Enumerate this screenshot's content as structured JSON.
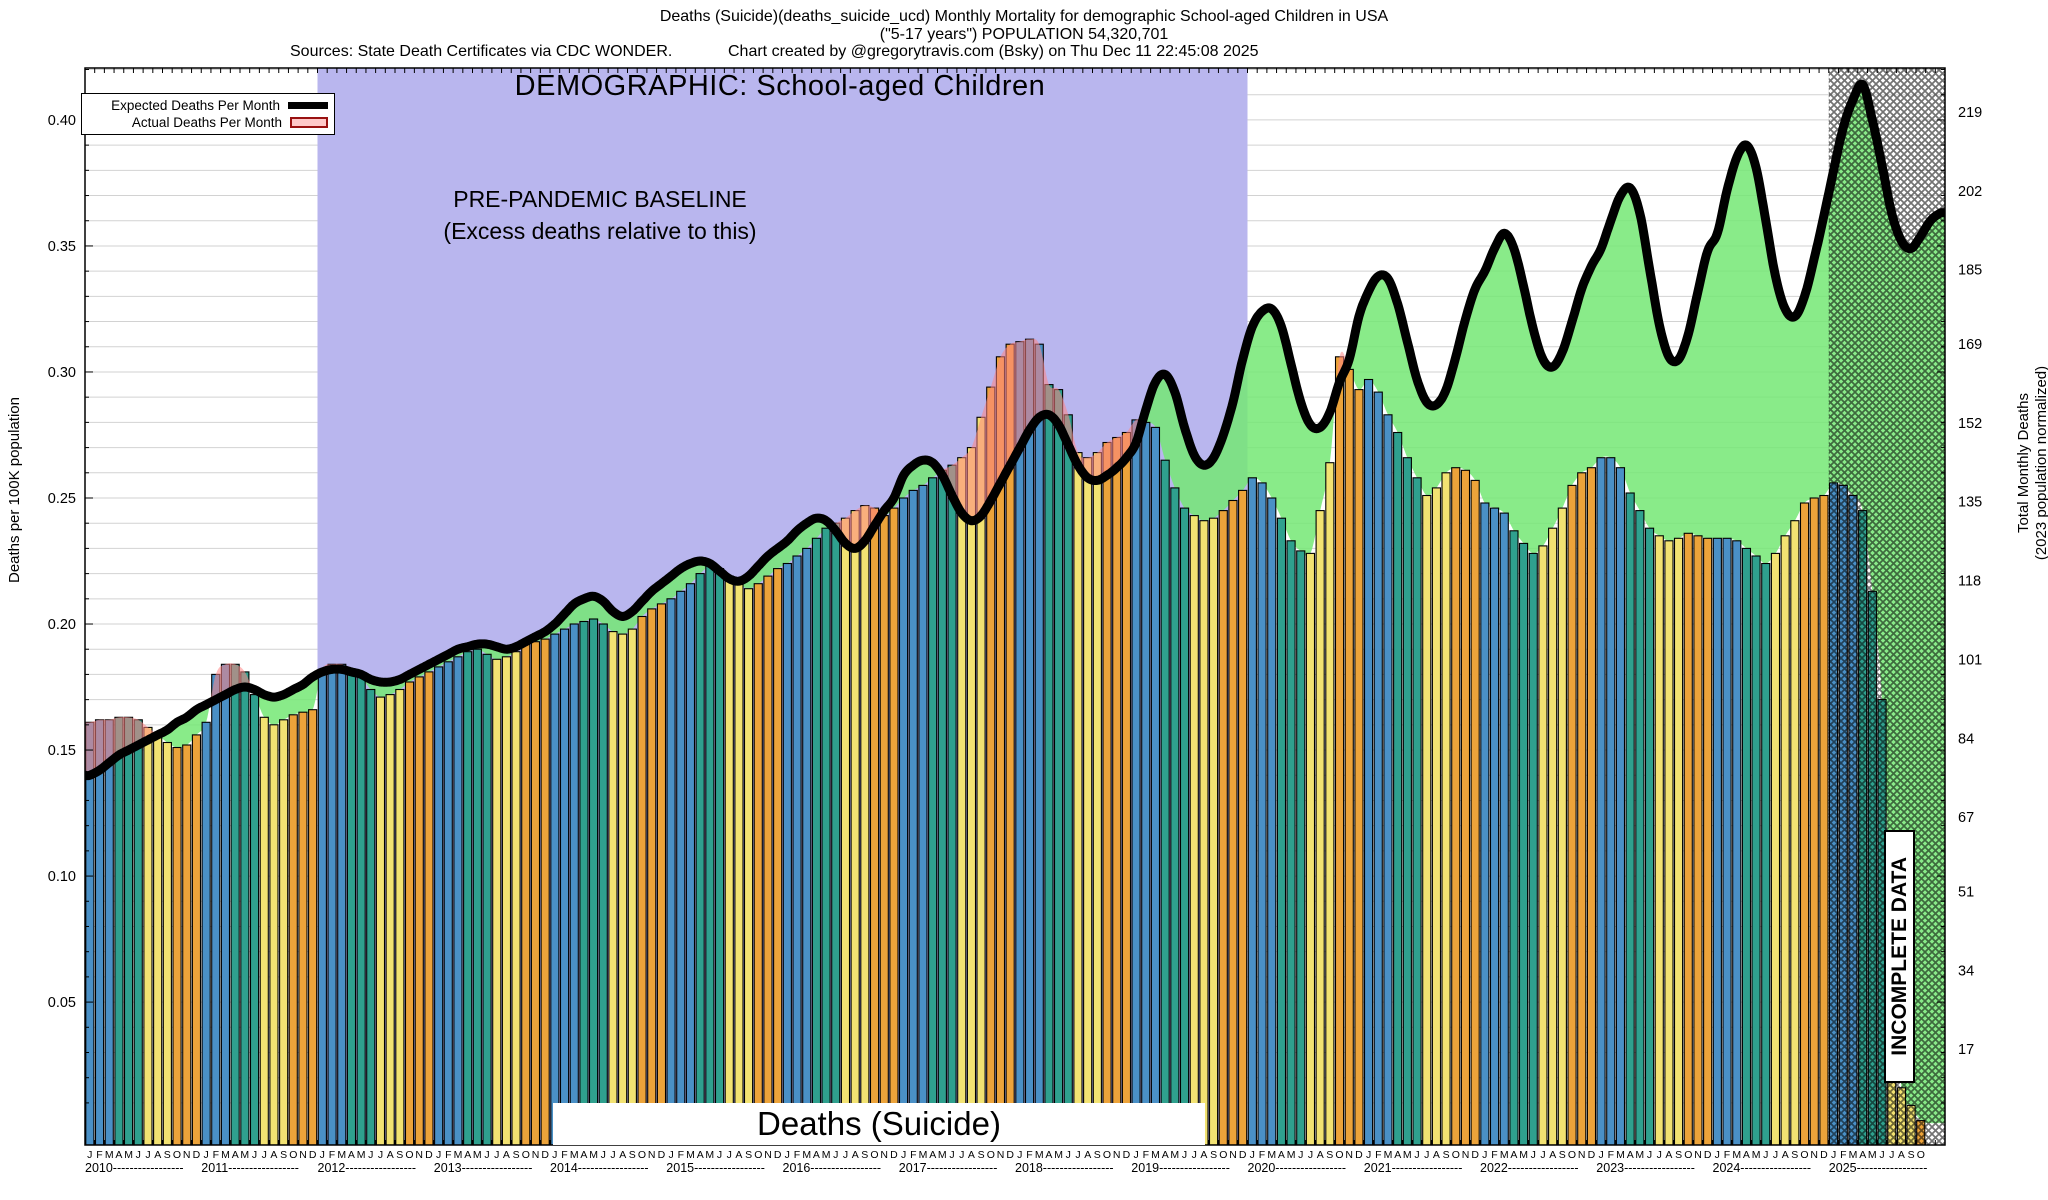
{
  "header": {
    "title_line1": "Deaths (Suicide)(deaths_suicide_ucd) Monthly Mortality for demographic School-aged Children in USA",
    "title_line2": "(\"5-17 years\") POPULATION 54,320,701",
    "sources": "Sources: State Death Certificates via CDC WONDER.",
    "credit": "Chart created by @gregorytravis.com (Bsky) on Thu Dec 11 22:45:08 2025"
  },
  "legend": {
    "expected_label": "Expected Deaths Per Month",
    "actual_label": "Actual Deaths Per Month"
  },
  "annotations": {
    "demographic": "DEMOGRAPHIC: School-aged Children",
    "baseline_line1": "PRE-PANDEMIC BASELINE",
    "baseline_line2": "(Excess deaths relative to this)",
    "bottom_label": "Deaths (Suicide)",
    "incomplete": "INCOMPLETE DATA"
  },
  "axes": {
    "left_title": "Deaths per 100K population",
    "right_title_line1": "Total Monthly Deaths",
    "right_title_line2": "(2023 population normalized)",
    "left_ticks": [
      0.05,
      0.1,
      0.15,
      0.2,
      0.25,
      0.3,
      0.35,
      0.4
    ],
    "right_ticks": [
      17,
      34,
      51,
      67,
      84,
      101,
      118,
      135,
      152,
      169,
      185,
      202,
      219
    ],
    "month_letters": "JFMAMJJASOND",
    "years": [
      2010,
      2011,
      2012,
      2013,
      2014,
      2015,
      2016,
      2017,
      2018,
      2019,
      2020,
      2021,
      2022,
      2023,
      2024,
      2025
    ]
  },
  "chart_data": {
    "type": "bar",
    "title": "Deaths (Suicide)",
    "ylabel_left": "Deaths per 100K population",
    "ylabel_right": "Total Monthly Deaths (2023 population normalized)",
    "x_start": "2010-01",
    "x_end_actual": "2025-10",
    "x_end_axis": "2025-12",
    "ylim": [
      0,
      0.42
    ],
    "population": 54320701,
    "population_100k": 543.20701,
    "grid_step": 0.01,
    "baseline_region": {
      "from_month_index": 24,
      "to_month_index": 120,
      "label": "PRE-PANDEMIC BASELINE",
      "color": "#b9b6ee"
    },
    "incomplete_region": {
      "from_month_index": 180,
      "label": "INCOMPLETE DATA"
    },
    "season_colors": {
      "jan_mar": "#4a90c6",
      "apr_jun": "#2fa08e",
      "jul_sep": "#f2e272",
      "oct_dec": "#eca33a"
    },
    "expected_line_color": "#000000",
    "deficit_fill_color": "#74e874",
    "excess_fill_color": "#ff8585",
    "series": [
      {
        "name": "Actual Deaths Per Month",
        "per_100k": [
          0.161,
          0.162,
          0.162,
          0.163,
          0.163,
          0.162,
          0.159,
          0.156,
          0.153,
          0.151,
          0.152,
          0.156,
          0.161,
          0.18,
          0.184,
          0.184,
          0.181,
          0.172,
          0.163,
          0.16,
          0.162,
          0.164,
          0.165,
          0.166,
          0.182,
          0.184,
          0.184,
          0.182,
          0.179,
          0.174,
          0.171,
          0.172,
          0.174,
          0.177,
          0.179,
          0.181,
          0.183,
          0.185,
          0.187,
          0.189,
          0.19,
          0.188,
          0.186,
          0.187,
          0.189,
          0.192,
          0.193,
          0.194,
          0.196,
          0.198,
          0.2,
          0.201,
          0.202,
          0.2,
          0.197,
          0.196,
          0.198,
          0.203,
          0.206,
          0.208,
          0.21,
          0.213,
          0.216,
          0.22,
          0.223,
          0.222,
          0.219,
          0.216,
          0.214,
          0.216,
          0.219,
          0.222,
          0.224,
          0.227,
          0.23,
          0.234,
          0.238,
          0.24,
          0.242,
          0.245,
          0.247,
          0.246,
          0.243,
          0.246,
          0.25,
          0.253,
          0.255,
          0.258,
          0.261,
          0.263,
          0.266,
          0.27,
          0.282,
          0.294,
          0.306,
          0.311,
          0.312,
          0.313,
          0.311,
          0.295,
          0.293,
          0.283,
          0.268,
          0.266,
          0.268,
          0.272,
          0.274,
          0.276,
          0.281,
          0.28,
          0.278,
          0.265,
          0.254,
          0.246,
          0.243,
          0.241,
          0.242,
          0.245,
          0.249,
          0.253,
          0.258,
          0.256,
          0.25,
          0.242,
          0.233,
          0.229,
          0.228,
          0.245,
          0.264,
          0.306,
          0.301,
          0.293,
          0.297,
          0.292,
          0.283,
          0.276,
          0.266,
          0.258,
          0.251,
          0.254,
          0.26,
          0.262,
          0.261,
          0.257,
          0.248,
          0.246,
          0.244,
          0.237,
          0.232,
          0.228,
          0.231,
          0.238,
          0.246,
          0.255,
          0.26,
          0.262,
          0.266,
          0.266,
          0.262,
          0.252,
          0.245,
          0.238,
          0.235,
          0.233,
          0.234,
          0.236,
          0.235,
          0.234,
          0.234,
          0.234,
          0.233,
          0.23,
          0.227,
          0.224,
          0.228,
          0.235,
          0.241,
          0.248,
          0.25,
          0.251,
          0.256,
          0.255,
          0.251,
          0.245,
          0.213,
          0.17,
          0.074,
          0.016,
          0.009,
          0.003
        ]
      },
      {
        "name": "Expected Deaths Per Month",
        "per_100k": [
          0.14,
          0.142,
          0.145,
          0.148,
          0.15,
          0.152,
          0.154,
          0.156,
          0.158,
          0.161,
          0.163,
          0.166,
          0.168,
          0.17,
          0.172,
          0.174,
          0.175,
          0.174,
          0.172,
          0.171,
          0.172,
          0.174,
          0.176,
          0.179,
          0.181,
          0.182,
          0.182,
          0.181,
          0.18,
          0.178,
          0.177,
          0.177,
          0.178,
          0.18,
          0.182,
          0.184,
          0.186,
          0.188,
          0.19,
          0.191,
          0.192,
          0.192,
          0.191,
          0.19,
          0.191,
          0.193,
          0.195,
          0.197,
          0.2,
          0.204,
          0.208,
          0.21,
          0.211,
          0.209,
          0.205,
          0.203,
          0.205,
          0.209,
          0.213,
          0.216,
          0.219,
          0.222,
          0.224,
          0.225,
          0.224,
          0.221,
          0.218,
          0.217,
          0.219,
          0.223,
          0.227,
          0.23,
          0.233,
          0.237,
          0.24,
          0.242,
          0.241,
          0.237,
          0.232,
          0.23,
          0.233,
          0.239,
          0.245,
          0.25,
          0.259,
          0.263,
          0.265,
          0.264,
          0.259,
          0.251,
          0.244,
          0.241,
          0.243,
          0.249,
          0.256,
          0.263,
          0.27,
          0.277,
          0.282,
          0.283,
          0.279,
          0.271,
          0.263,
          0.258,
          0.257,
          0.259,
          0.262,
          0.266,
          0.272,
          0.285,
          0.296,
          0.299,
          0.292,
          0.278,
          0.267,
          0.263,
          0.266,
          0.275,
          0.288,
          0.305,
          0.318,
          0.324,
          0.325,
          0.318,
          0.303,
          0.288,
          0.279,
          0.278,
          0.284,
          0.296,
          0.305,
          0.322,
          0.332,
          0.338,
          0.337,
          0.327,
          0.312,
          0.297,
          0.288,
          0.287,
          0.293,
          0.306,
          0.321,
          0.333,
          0.34,
          0.349,
          0.355,
          0.349,
          0.334,
          0.317,
          0.305,
          0.302,
          0.308,
          0.32,
          0.333,
          0.342,
          0.349,
          0.36,
          0.37,
          0.373,
          0.363,
          0.341,
          0.319,
          0.306,
          0.305,
          0.315,
          0.332,
          0.348,
          0.355,
          0.372,
          0.385,
          0.39,
          0.381,
          0.36,
          0.338,
          0.325,
          0.322,
          0.33,
          0.345,
          0.362,
          0.38,
          0.397,
          0.408,
          0.414,
          0.4,
          0.382,
          0.363,
          0.352,
          0.349,
          0.354,
          0.36,
          0.363
        ]
      }
    ]
  }
}
